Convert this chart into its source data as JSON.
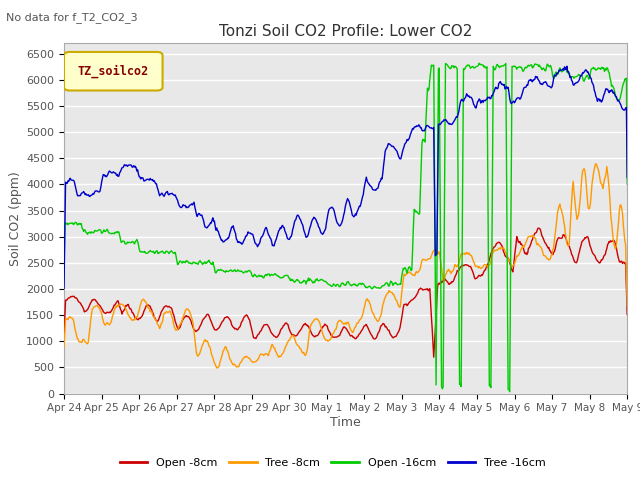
{
  "title": "Tonzi Soil CO2 Profile: Lower CO2",
  "subtitle": "No data for f_T2_CO2_3",
  "xlabel": "Time",
  "ylabel": "Soil CO2 (ppm)",
  "ylim": [
    0,
    6700
  ],
  "yticks": [
    0,
    500,
    1000,
    1500,
    2000,
    2500,
    3000,
    3500,
    4000,
    4500,
    5000,
    5500,
    6000,
    6500
  ],
  "legend_label": "TZ_soilco2",
  "bg_color": "#e8e8e8",
  "line_colors": {
    "open8": "#cc0000",
    "tree8": "#ff9900",
    "open16": "#00cc00",
    "tree16": "#0000cc"
  },
  "legend_entries": [
    "Open -8cm",
    "Tree -8cm",
    "Open -16cm",
    "Tree -16cm"
  ],
  "xtick_labels": [
    "Apr 24",
    "Apr 25",
    "Apr 26",
    "Apr 27",
    "Apr 28",
    "Apr 29",
    "Apr 30",
    "May 1",
    "May 2",
    "May 3",
    "May 4",
    "May 5",
    "May 6",
    "May 7",
    "May 8",
    "May 9"
  ]
}
